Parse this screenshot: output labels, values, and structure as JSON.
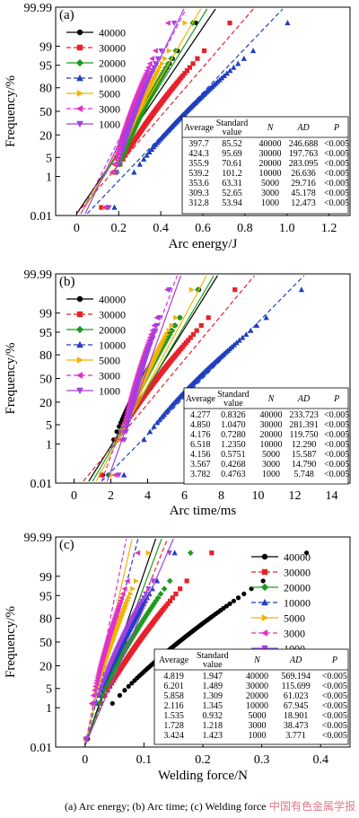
{
  "chart_data": [
    {
      "panel": "(a)",
      "type": "scatter",
      "xlabel": "Arc energy/J",
      "ylabel": "Frequency/%",
      "xlim": [
        -0.1,
        1.3
      ],
      "xticks": [
        "0",
        "0.2",
        "0.4",
        "0.6",
        "0.8",
        "1.0",
        "1.2"
      ],
      "xtickvals": [
        0,
        0.2,
        0.4,
        0.6,
        0.8,
        1.0,
        1.2
      ],
      "yticks": [
        "0.01",
        "1",
        "5",
        "20",
        "50",
        "80",
        "95",
        "99",
        "99.99"
      ],
      "ytickvals": [
        0.01,
        1,
        5,
        20,
        50,
        80,
        95,
        99,
        99.99
      ],
      "series": [
        {
          "name": "40000",
          "color": "#000000",
          "marker": "circle",
          "xmin": 0.12,
          "xmax": 0.62,
          "fitx": [
            0,
            0.66
          ]
        },
        {
          "name": "30000",
          "color": "#e8202a",
          "marker": "square",
          "xmin": 0.11,
          "xmax": 0.8,
          "fitx": [
            0,
            0.84
          ]
        },
        {
          "name": "20000",
          "color": "#1e9a1e",
          "marker": "diamond",
          "xmin": 0.14,
          "xmax": 0.6,
          "fitx": [
            0.02,
            0.62
          ]
        },
        {
          "name": "10000",
          "color": "#1f3fbf",
          "marker": "triangle",
          "xmin": 0.17,
          "xmax": 1.1,
          "fitx": [
            0.05,
            0.98
          ]
        },
        {
          "name": "5000",
          "color": "#f0b400",
          "marker": "tri-right",
          "xmin": 0.13,
          "xmax": 0.56,
          "fitx": [
            0.02,
            0.59
          ]
        },
        {
          "name": "3000",
          "color": "#e030c8",
          "marker": "tri-left",
          "xmin": 0.13,
          "xmax": 0.47,
          "fitx": [
            0.02,
            0.52
          ]
        },
        {
          "name": "1000",
          "color": "#a040e0",
          "marker": "tri-down",
          "xmin": 0.15,
          "xmax": 0.5,
          "fitx": [
            0.04,
            0.51
          ]
        }
      ],
      "table": {
        "headers": [
          "Average",
          "Standard value",
          "N",
          "AD",
          "P"
        ],
        "rows": [
          [
            "397.7",
            "85.52",
            "40000",
            "246.688",
            "<0.005"
          ],
          [
            "424.3",
            "95.69",
            "30000",
            "197.763",
            "<0.005"
          ],
          [
            "355.9",
            "70.61",
            "20000",
            "283.095",
            "<0.005"
          ],
          [
            "539.2",
            "101.2",
            "10000",
            "26.636",
            "<0.005"
          ],
          [
            "353.6",
            "63.31",
            "5000",
            "29.716",
            "<0.005"
          ],
          [
            "309.3",
            "52.65",
            "3000",
            "45.178",
            "<0.005"
          ],
          [
            "312.8",
            "53.94",
            "1000",
            "12.473",
            "<0.005"
          ]
        ]
      }
    },
    {
      "panel": "(b)",
      "type": "scatter",
      "xlabel": "Arc time/ms",
      "ylabel": "Frequency/%",
      "xlim": [
        -1,
        15
      ],
      "xticks": [
        "0",
        "2",
        "4",
        "6",
        "8",
        "10",
        "12",
        "14"
      ],
      "xtickvals": [
        0,
        2,
        4,
        6,
        8,
        10,
        12,
        14
      ],
      "yticks": [
        "0.01",
        "1",
        "5",
        "20",
        "50",
        "80",
        "95",
        "99",
        "99.99"
      ],
      "ytickvals": [
        0.01,
        1,
        5,
        20,
        50,
        80,
        95,
        99,
        99.99
      ],
      "series": [
        {
          "name": "40000",
          "color": "#000000",
          "marker": "circle",
          "xmin": 1.5,
          "xmax": 7.4,
          "fitx": [
            0.8,
            7.8
          ]
        },
        {
          "name": "30000",
          "color": "#e8202a",
          "marker": "square",
          "xmin": 1.4,
          "xmax": 9.6,
          "fitx": [
            0.5,
            9.8
          ]
        },
        {
          "name": "20000",
          "color": "#1e9a1e",
          "marker": "diamond",
          "xmin": 1.8,
          "xmax": 7.3,
          "fitx": [
            1,
            7.6
          ]
        },
        {
          "name": "10000",
          "color": "#1f3fbf",
          "marker": "triangle",
          "xmin": 2.6,
          "xmax": 13.5,
          "fitx": [
            1.5,
            12.5
          ]
        },
        {
          "name": "5000",
          "color": "#f0b400",
          "marker": "tri-right",
          "xmin": 2.0,
          "xmax": 6.9,
          "fitx": [
            1.2,
            7.2
          ]
        },
        {
          "name": "3000",
          "color": "#e030c8",
          "marker": "tri-left",
          "xmin": 2.2,
          "xmax": 5.4,
          "fitx": [
            1.5,
            5.6
          ]
        },
        {
          "name": "1000",
          "color": "#a040e0",
          "marker": "tri-down",
          "xmin": 2.4,
          "xmax": 5.5,
          "fitx": [
            1.8,
            5.8
          ]
        }
      ],
      "table": {
        "headers": [
          "Average",
          "Standard value",
          "N",
          "AD",
          "P"
        ],
        "rows": [
          [
            "4.277",
            "0.8326",
            "40000",
            "233.723",
            "<0.005"
          ],
          [
            "4.850",
            "1.0470",
            "30000",
            "281.391",
            "<0.005"
          ],
          [
            "4.176",
            "0.7280",
            "20000",
            "119.750",
            "<0.005"
          ],
          [
            "6.518",
            "1.2350",
            "10000",
            "12.290",
            "<0.005"
          ],
          [
            "4.156",
            "0.5751",
            "5000",
            "15.587",
            "<0.005"
          ],
          [
            "3.567",
            "0.4268",
            "3000",
            "14.790",
            "<0.005"
          ],
          [
            "3.782",
            "0.4763",
            "1000",
            "5.748",
            "<0.005"
          ]
        ]
      }
    },
    {
      "panel": "(c)",
      "type": "scatter",
      "xlabel": "Welding force/N",
      "ylabel": "Frequency/%",
      "xlim": [
        -0.05,
        0.45
      ],
      "xticks": [
        "0",
        "0.1",
        "0.2",
        "0.3",
        "0.4"
      ],
      "xtickvals": [
        0,
        0.1,
        0.2,
        0.3,
        0.4
      ],
      "yticks": [
        "0.01",
        "1",
        "5",
        "20",
        "50",
        "80",
        "95",
        "99",
        "99.99"
      ],
      "ytickvals": [
        0.01,
        1,
        5,
        20,
        50,
        80,
        95,
        99,
        99.99
      ],
      "series": [
        {
          "name": "40000",
          "color": "#000000",
          "marker": "circle",
          "xmin": 0.0,
          "xmax": 0.42,
          "fitx": [
            0,
            0.12
          ]
        },
        {
          "name": "30000",
          "color": "#e8202a",
          "marker": "square",
          "xmin": 0.0,
          "xmax": 0.24,
          "fitx": [
            0,
            0.14
          ]
        },
        {
          "name": "20000",
          "color": "#1e9a1e",
          "marker": "diamond",
          "xmin": 0.0,
          "xmax": 0.2,
          "fitx": [
            0,
            0.13
          ]
        },
        {
          "name": "10000",
          "color": "#1f3fbf",
          "marker": "triangle",
          "xmin": 0.0,
          "xmax": 0.17,
          "fitx": [
            0,
            0.09
          ]
        },
        {
          "name": "5000",
          "color": "#f0b400",
          "marker": "tri-right",
          "xmin": 0.0,
          "xmax": 0.12,
          "fitx": [
            0,
            0.08
          ]
        },
        {
          "name": "3000",
          "color": "#e030c8",
          "marker": "tri-left",
          "xmin": 0.0,
          "xmax": 0.1,
          "fitx": [
            0,
            0.07
          ]
        },
        {
          "name": "1000",
          "color": "#a040e0",
          "marker": "tri-down",
          "xmin": 0.0,
          "xmax": 0.16,
          "fitx": [
            0,
            0.15
          ]
        }
      ],
      "table": {
        "headers": [
          "Average",
          "Standard value",
          "N",
          "AD",
          "P"
        ],
        "rows": [
          [
            "4.819",
            "1.947",
            "40000",
            "569.194",
            "<0.005"
          ],
          [
            "6.201",
            "1.489",
            "30000",
            "115.699",
            "<0.005"
          ],
          [
            "5.858",
            "1.309",
            "20000",
            "61.023",
            "<0.005"
          ],
          [
            "2.116",
            "1.345",
            "10000",
            "67.945",
            "<0.005"
          ],
          [
            "1.535",
            "0.932",
            "5000",
            "18.901",
            "<0.005"
          ],
          [
            "1.728",
            "1.218",
            "3000",
            "38.473",
            "<0.005"
          ],
          [
            "3.424",
            "1.423",
            "1000",
            "3.771",
            "<0.005"
          ]
        ]
      }
    }
  ],
  "caption": "(a) Arc energy;  (b) Arc time;  (c) Welding force",
  "watermark": "中国有色金属学报"
}
